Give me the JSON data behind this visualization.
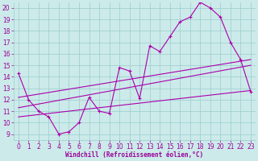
{
  "bg_color": "#cceaea",
  "grid_color": "#99cccc",
  "line_color": "#aa00aa",
  "xlabel": "Windchill (Refroidissement éolien,°C)",
  "xlabel_color": "#990099",
  "xtick_color": "#990099",
  "ytick_color": "#990099",
  "xlim": [
    -0.5,
    23.5
  ],
  "ylim": [
    8.5,
    20.5
  ],
  "yticks": [
    9,
    10,
    11,
    12,
    13,
    14,
    15,
    16,
    17,
    18,
    19,
    20
  ],
  "xticks": [
    0,
    1,
    2,
    3,
    4,
    5,
    6,
    7,
    8,
    9,
    10,
    11,
    12,
    13,
    14,
    15,
    16,
    17,
    18,
    19,
    20,
    21,
    22,
    23
  ],
  "main_x": [
    0,
    1,
    2,
    3,
    4,
    5,
    6,
    7,
    8,
    9,
    10,
    11,
    12,
    13,
    14,
    15,
    16,
    17,
    18,
    19,
    20,
    21,
    22,
    23
  ],
  "main_y": [
    14.3,
    12.0,
    11.0,
    10.5,
    9.0,
    9.2,
    10.0,
    12.2,
    11.0,
    10.8,
    14.8,
    14.5,
    12.1,
    16.7,
    16.2,
    17.5,
    18.8,
    19.2,
    20.5,
    20.0,
    19.2,
    17.0,
    15.5,
    12.7
  ],
  "upper_line_x": [
    0,
    23
  ],
  "upper_line_y": [
    12.2,
    15.5
  ],
  "middle_line_x": [
    0,
    23
  ],
  "middle_line_y": [
    11.3,
    15.0
  ],
  "lower_line_x": [
    0,
    23
  ],
  "lower_line_y": [
    10.5,
    12.8
  ],
  "font_size": 5.5
}
